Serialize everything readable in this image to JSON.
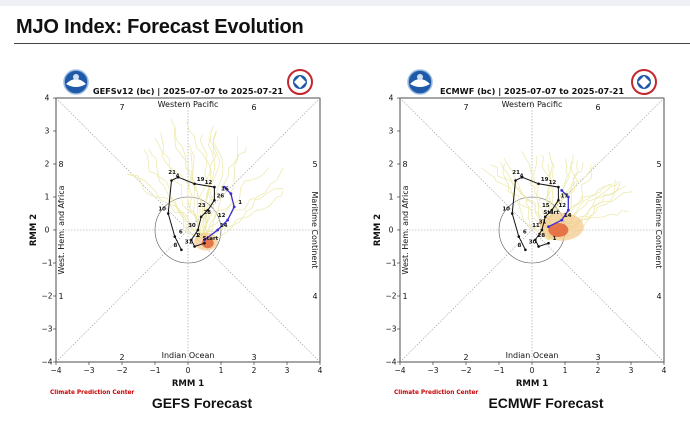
{
  "page": {
    "title": "MJO Index: Forecast Evolution"
  },
  "colors": {
    "ensemble": "#ece8a6",
    "observed": "#111111",
    "forecast_mean": "#3b2fd6",
    "spread": "#f3c98a",
    "diagonal": "#9a9a9a",
    "cpc_red": "#cc0000"
  },
  "panels": [
    {
      "title": "GEFSv12 (bc) | 2025-07-07 to 2025-07-21",
      "caption": "GEFS Forecast",
      "credit": "Climate Prediction Center",
      "logo_left": "noaa-logo",
      "logo_right": "nws-logo",
      "regions": {
        "top": "Western Pacific",
        "bottom": "Indian Ocean",
        "left": "West. Hem. and Africa",
        "right": "Maritime Continent"
      },
      "phase_numbers": [
        "1",
        "2",
        "3",
        "4",
        "5",
        "6",
        "7",
        "8"
      ],
      "axis_ticks": [
        "-4",
        "-3",
        "-2",
        "-1",
        "0",
        "1",
        "2",
        "3",
        "4"
      ],
      "xlabel": "RMM 1",
      "ylabel": "RMM 2",
      "path_labels": [
        "8",
        "6",
        "10",
        "4",
        "21",
        "19",
        "12",
        "26",
        "23",
        "28",
        "30",
        "1",
        "31",
        "Start",
        "2",
        "14",
        "12",
        "1",
        "16"
      ]
    },
    {
      "title": "ECMWF (bc) | 2025-07-07 to 2025-07-21",
      "caption": "ECMWF Forecast",
      "credit": "Climate Prediction Center",
      "logo_left": "noaa-logo",
      "logo_right": "nws-logo",
      "regions": {
        "top": "Western Pacific",
        "bottom": "Indian Ocean",
        "left": "West. Hem. and Africa",
        "right": "Maritime Continent"
      },
      "phase_numbers": [
        "1",
        "2",
        "3",
        "4",
        "5",
        "6",
        "7",
        "8"
      ],
      "axis_ticks": [
        "-4",
        "-3",
        "-2",
        "-1",
        "0",
        "1",
        "2",
        "3",
        "4"
      ],
      "xlabel": "RMM 1",
      "ylabel": "RMM 2",
      "path_labels": [
        "8",
        "6",
        "10",
        "4",
        "21",
        "19",
        "12",
        "17",
        "15",
        "Start",
        "11",
        "28",
        "30",
        "1",
        "31",
        "14",
        "12"
      ]
    }
  ],
  "chart_data": [
    {
      "type": "scatter",
      "title": "GEFSv12 (bc) | 2025-07-07 to 2025-07-21",
      "xlabel": "RMM 1",
      "ylabel": "RMM 2",
      "xlim": [
        -4,
        4
      ],
      "ylim": [
        -4,
        4
      ],
      "series": [
        {
          "values_xy": [
            [
              -0.2,
              -0.6
            ],
            [
              -0.4,
              -0.2
            ],
            [
              -0.6,
              0.5
            ],
            [
              -0.5,
              1.5
            ],
            [
              -0.3,
              1.6
            ],
            [
              0.2,
              1.4
            ],
            [
              0.8,
              1.3
            ],
            [
              0.8,
              0.9
            ],
            [
              0.6,
              0.6
            ],
            [
              0.4,
              0.4
            ],
            [
              0.3,
              0.0
            ],
            [
              0.1,
              -0.3
            ],
            [
              0.2,
              -0.5
            ],
            [
              0.5,
              -0.4
            ]
          ]
        },
        {
          "values_xy": [
            [
              0.5,
              -0.3
            ],
            [
              0.9,
              0.0
            ],
            [
              1.2,
              0.3
            ],
            [
              1.4,
              0.7
            ],
            [
              1.3,
              1.1
            ],
            [
              1.1,
              1.3
            ]
          ]
        }
      ]
    },
    {
      "type": "scatter",
      "title": "ECMWF (bc) | 2025-07-07 to 2025-07-21",
      "xlabel": "RMM 1",
      "ylabel": "RMM 2",
      "xlim": [
        -4,
        4
      ],
      "ylim": [
        -4,
        4
      ],
      "series": [
        {
          "values_xy": [
            [
              -0.2,
              -0.6
            ],
            [
              -0.4,
              -0.2
            ],
            [
              -0.6,
              0.5
            ],
            [
              -0.5,
              1.5
            ],
            [
              -0.3,
              1.6
            ],
            [
              0.2,
              1.4
            ],
            [
              0.8,
              1.3
            ],
            [
              0.8,
              0.9
            ],
            [
              0.6,
              0.6
            ],
            [
              0.4,
              0.4
            ],
            [
              0.3,
              0.0
            ],
            [
              0.1,
              -0.3
            ],
            [
              0.2,
              -0.5
            ],
            [
              0.5,
              -0.4
            ]
          ]
        },
        {
          "values_xy": [
            [
              0.5,
              0.1
            ],
            [
              0.9,
              0.3
            ],
            [
              1.1,
              0.6
            ],
            [
              1.1,
              1.0
            ],
            [
              0.9,
              1.2
            ]
          ]
        }
      ]
    }
  ]
}
